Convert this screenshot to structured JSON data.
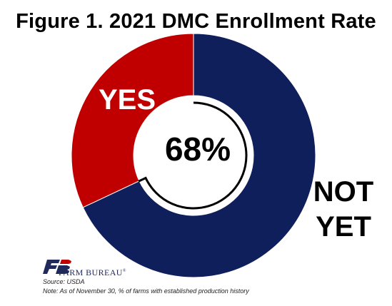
{
  "title": "Figure 1. 2021 DMC Enrollment Rate",
  "chart_data": {
    "type": "pie",
    "subtype": "donut",
    "categories": [
      "YES",
      "NOT YET"
    ],
    "values": [
      32,
      68
    ],
    "center_label": "68%",
    "series_labels": {
      "yes": "YES",
      "not_yet_line1": "NOT",
      "not_yet_line2": "YET"
    },
    "colors": {
      "yes": "#c00000",
      "not_yet": "#0f1f5c",
      "center_ring": "#000000"
    }
  },
  "footer": {
    "brand_name": "FARM BUREAU",
    "brand_mark": "®",
    "source": "Source:  USDA",
    "note": "Note: As of November 30, % of farms with established production history"
  }
}
